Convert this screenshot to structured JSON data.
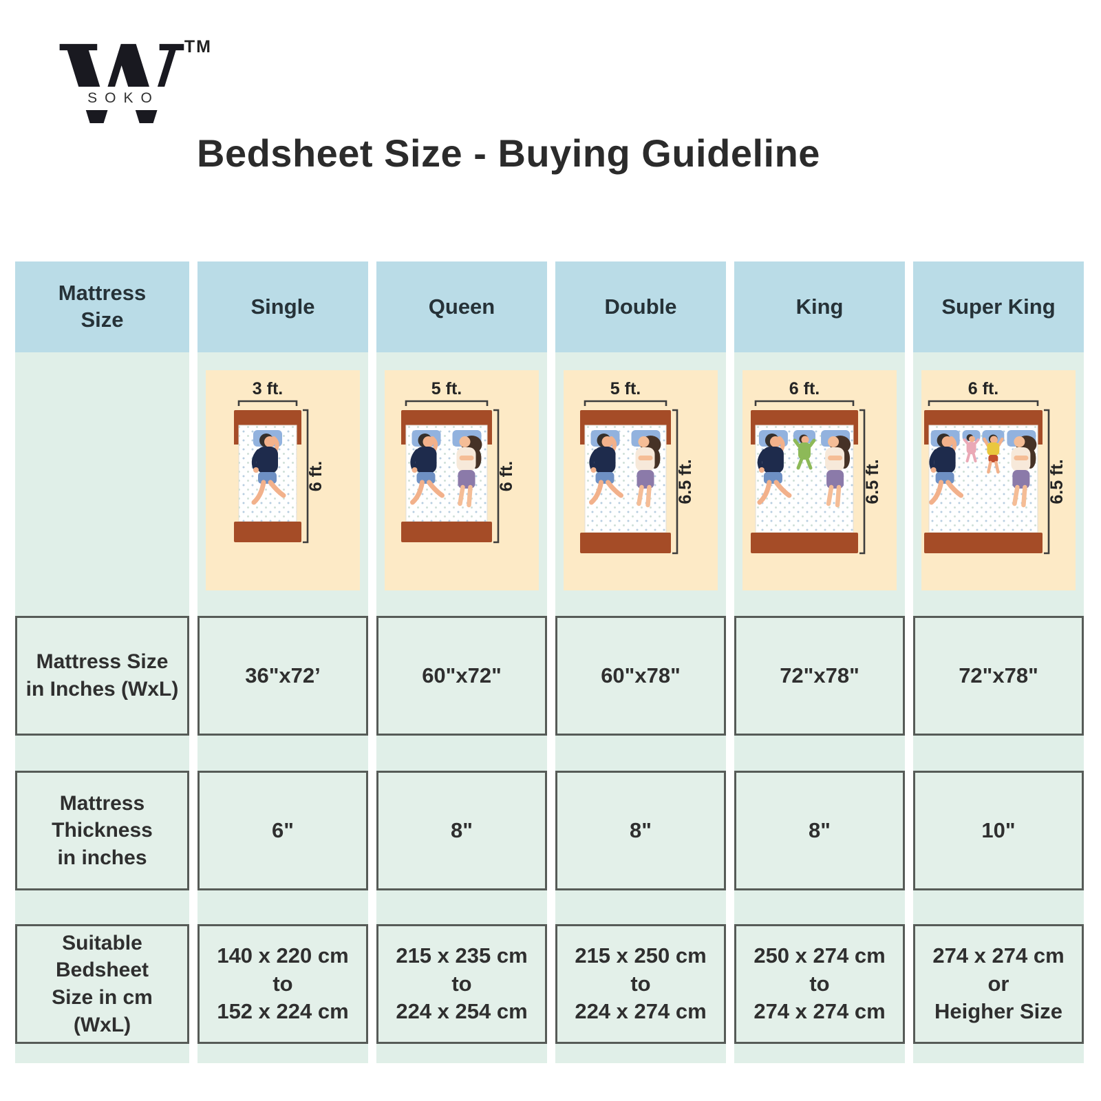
{
  "brand": {
    "logo_letter": "W",
    "logo_sub": "SOKO",
    "trademark": "TM"
  },
  "title": "Bedsheet Size - Buying Guideline",
  "colors": {
    "header_bg": "#badce7",
    "strip_bg": "#e0efe8",
    "illustration_bg": "#fdeac6",
    "cell_bg": "#e3f0e9",
    "cell_border": "#565b57",
    "bed_frame": "#a54c27",
    "pillow": "#92b2de",
    "title_text": "#2b2b2b",
    "body_text": "#2f2f2f"
  },
  "table": {
    "label_column": {
      "header": [
        "Mattress",
        "Size"
      ],
      "row_inches": [
        "Mattress Size",
        "in Inches (WxL)"
      ],
      "row_thickness": [
        "Mattress",
        "Thickness",
        "in inches"
      ],
      "row_bedsheet": [
        "Suitable",
        "Bedsheet",
        "Size in cm (WxL)"
      ]
    },
    "columns": [
      {
        "name": "Single",
        "bed": {
          "width_label": "3 ft.",
          "height_label": "6 ft.",
          "width_ft": 3,
          "height_ft": 6,
          "sleepers": [
            "man"
          ]
        },
        "inches": "36\"x72’",
        "thickness": "6\"",
        "bedsheet_cm": [
          "140 x 220 cm",
          "to",
          "152 x 224 cm"
        ]
      },
      {
        "name": "Queen",
        "bed": {
          "width_label": "5 ft.",
          "height_label": "6 ft.",
          "width_ft": 5,
          "height_ft": 6,
          "sleepers": [
            "man",
            "woman"
          ]
        },
        "inches": "60\"x72\"",
        "thickness": "8\"",
        "bedsheet_cm": [
          "215 x 235 cm",
          "to",
          "224 x 254 cm"
        ]
      },
      {
        "name": "Double",
        "bed": {
          "width_label": "5 ft.",
          "height_label": "6.5 ft.",
          "width_ft": 5,
          "height_ft": 6.5,
          "sleepers": [
            "man",
            "woman"
          ]
        },
        "inches": "60\"x78\"",
        "thickness": "8\"",
        "bedsheet_cm": [
          "215 x 250 cm",
          "to",
          "224 x 274 cm"
        ]
      },
      {
        "name": "King",
        "bed": {
          "width_label": "6 ft.",
          "height_label": "6.5 ft.",
          "width_ft": 6,
          "height_ft": 6.5,
          "sleepers": [
            "man",
            "child-green",
            "woman"
          ]
        },
        "inches": "72\"x78\"",
        "thickness": "8\"",
        "bedsheet_cm": [
          "250 x 274 cm",
          "to",
          "274 x 274 cm"
        ]
      },
      {
        "name": "Super King",
        "bed": {
          "width_label": "6 ft.",
          "height_label": "6.5 ft.",
          "width_ft": 6,
          "height_ft": 6.5,
          "sleepers": [
            "man",
            "baby",
            "child-yellow",
            "woman"
          ]
        },
        "inches": "72\"x78\"",
        "thickness": "10\"",
        "bedsheet_cm": [
          "274 x 274 cm",
          "or",
          "Heigher Size"
        ]
      }
    ]
  }
}
